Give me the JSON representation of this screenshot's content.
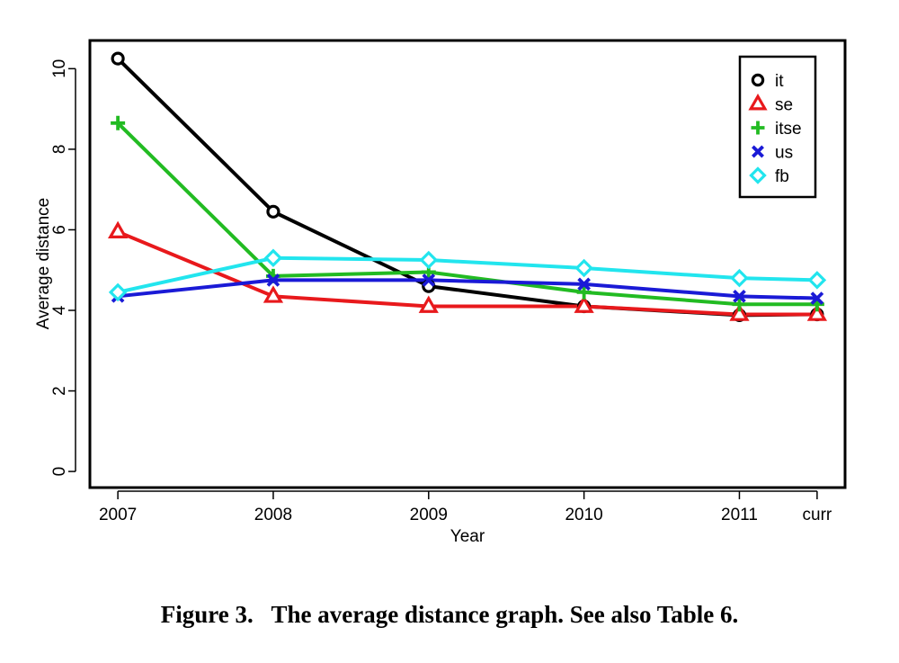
{
  "chart_data": {
    "type": "line",
    "title": "",
    "xlabel": "Year",
    "ylabel": "Average distance",
    "categories": [
      "2007",
      "2008",
      "2009",
      "2010",
      "2011",
      "curr"
    ],
    "x": [
      2007,
      2008,
      2009,
      2010,
      2011,
      2011.5
    ],
    "ylim": [
      -0.4,
      10.7
    ],
    "yticks": [
      0,
      2,
      4,
      6,
      8,
      10
    ],
    "grid": false,
    "legend_position": "top-right",
    "series": [
      {
        "name": "it",
        "color": "#000000",
        "marker": "circle",
        "values": [
          10.25,
          6.45,
          4.6,
          4.1,
          3.88,
          3.9
        ]
      },
      {
        "name": "se",
        "color": "#e8191c",
        "marker": "triangle",
        "values": [
          5.95,
          4.35,
          4.1,
          4.1,
          3.9,
          3.9
        ]
      },
      {
        "name": "itse",
        "color": "#22bb22",
        "marker": "plus",
        "values": [
          8.65,
          4.85,
          4.95,
          4.45,
          4.15,
          4.15
        ]
      },
      {
        "name": "us",
        "color": "#1a1ad6",
        "marker": "cross",
        "values": [
          4.35,
          4.75,
          4.75,
          4.65,
          4.35,
          4.3
        ]
      },
      {
        "name": "fb",
        "color": "#22e5ee",
        "marker": "diamond",
        "values": [
          4.45,
          5.3,
          5.25,
          5.05,
          4.8,
          4.75
        ]
      }
    ]
  },
  "caption": "Figure 3.   The average distance graph. See also Table 6."
}
